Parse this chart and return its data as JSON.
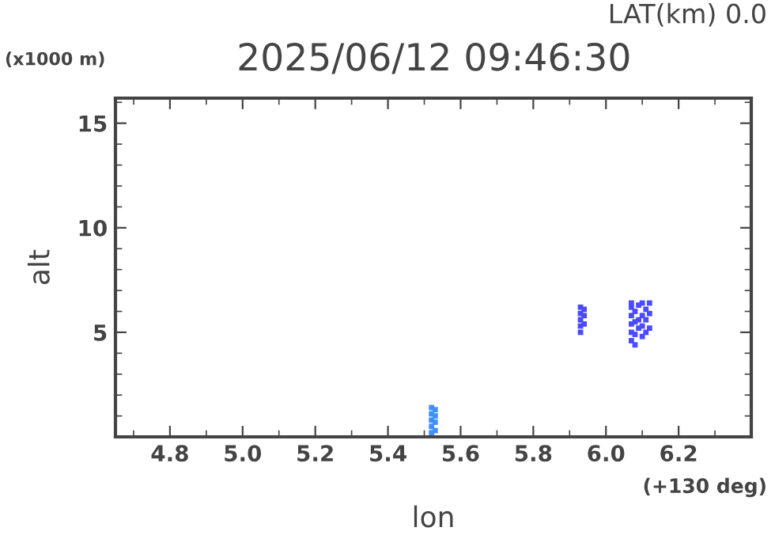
{
  "chart_data": {
    "type": "scatter",
    "title": "2025/06/12 09:46:30",
    "xlabel": "lon",
    "ylabel": "alt",
    "annotations": [
      "LAT(km) 0.0",
      "(x1000 m)",
      "(+130 deg)"
    ],
    "xlim": [
      4.65,
      6.4
    ],
    "xticks": [
      {
        "value": 4.8,
        "label": "4.8"
      },
      {
        "value": 5.0,
        "label": "5.0"
      },
      {
        "value": 5.2,
        "label": "5.2"
      },
      {
        "value": 5.4,
        "label": "5.4"
      },
      {
        "value": 5.6,
        "label": "5.6"
      },
      {
        "value": 5.8,
        "label": "5.8"
      },
      {
        "value": 6.0,
        "label": "6.0"
      },
      {
        "value": 6.2,
        "label": "6.2"
      }
    ],
    "ylim": [
      0,
      16.2
    ],
    "yticks": [
      5,
      10,
      15
    ],
    "grid": false,
    "legend": false,
    "marker": "square",
    "series": [
      {
        "color": "#3f8fff",
        "x": [
          5.52,
          5.52,
          5.52,
          5.52,
          5.52,
          5.53,
          5.53,
          5.53,
          5.53
        ],
        "values": [
          0.2,
          0.5,
          0.8,
          1.1,
          1.4,
          0.3,
          0.7,
          1.0,
          1.3
        ]
      },
      {
        "color": "#4a4aff",
        "x": [
          5.93,
          5.93,
          5.93,
          5.93,
          5.93,
          5.94,
          5.94,
          5.94,
          6.07,
          6.07,
          6.07,
          6.07,
          6.07,
          6.07,
          6.08,
          6.08,
          6.08,
          6.08,
          6.09,
          6.09,
          6.09,
          6.1,
          6.1,
          6.1,
          6.1,
          6.11,
          6.11,
          6.11,
          6.12,
          6.12,
          6.12
        ],
        "values": [
          5.0,
          5.3,
          5.6,
          5.9,
          6.2,
          5.4,
          5.8,
          6.1,
          4.6,
          5.0,
          5.4,
          5.8,
          6.2,
          6.4,
          4.4,
          4.9,
          5.5,
          6.0,
          5.2,
          5.6,
          6.3,
          4.8,
          5.3,
          5.8,
          6.4,
          5.0,
          5.6,
          6.1,
          5.2,
          5.9,
          6.4
        ]
      }
    ]
  }
}
